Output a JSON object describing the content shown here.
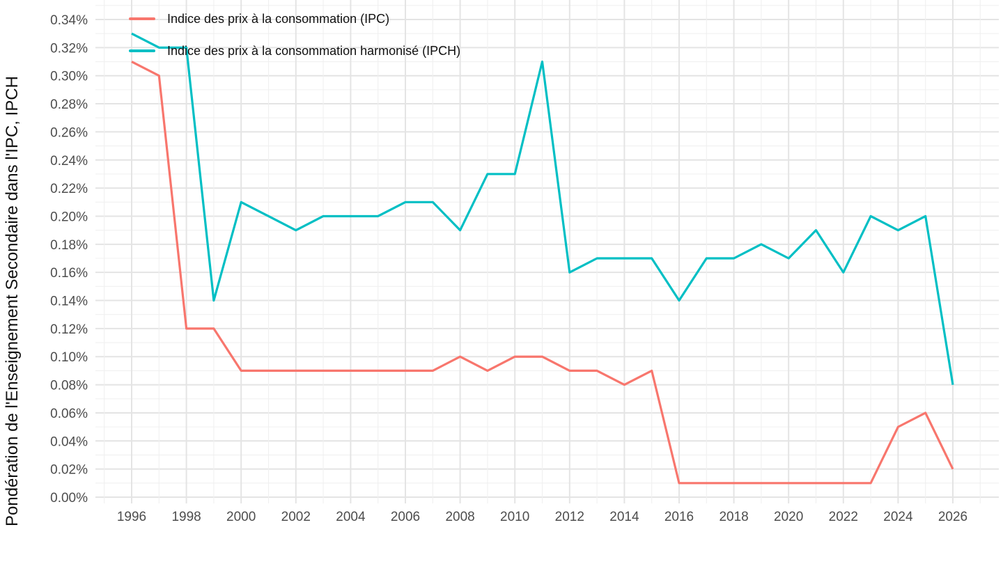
{
  "chart_data": {
    "type": "line",
    "unit": "percent-of-index-weight",
    "x": [
      1996,
      1997,
      1998,
      1999,
      2000,
      2001,
      2002,
      2003,
      2004,
      2005,
      2006,
      2007,
      2008,
      2009,
      2010,
      2011,
      2012,
      2013,
      2014,
      2015,
      2016,
      2017,
      2018,
      2019,
      2020,
      2021,
      2022,
      2023,
      2024,
      2025,
      2026
    ],
    "series": [
      {
        "name": "Indice des prix à la consommation (IPC)",
        "color": "#F8766D",
        "values": [
          0.31,
          0.3,
          0.12,
          0.12,
          0.09,
          0.09,
          0.09,
          0.09,
          0.09,
          0.09,
          0.09,
          0.09,
          0.1,
          0.09,
          0.1,
          0.1,
          0.09,
          0.09,
          0.08,
          0.09,
          0.01,
          0.01,
          0.01,
          0.01,
          0.01,
          0.01,
          0.01,
          0.01,
          0.05,
          0.06,
          0.02
        ]
      },
      {
        "name": "Indice des prix à la consommation harmonisé (IPCH)",
        "color": "#00BFC4",
        "values": [
          0.33,
          0.32,
          0.32,
          0.14,
          0.21,
          0.2,
          0.19,
          0.2,
          0.2,
          0.2,
          0.21,
          0.21,
          0.19,
          0.23,
          0.23,
          0.31,
          0.16,
          0.17,
          0.17,
          0.17,
          0.14,
          0.17,
          0.17,
          0.18,
          0.17,
          0.19,
          0.16,
          0.2,
          0.19,
          0.2,
          0.08
        ]
      }
    ],
    "y_axis": {
      "title": "Pondération de l'Enseignement Secondaire dans l'IPC, IPCH",
      "tick_values": [
        0.0,
        0.02,
        0.04,
        0.06,
        0.08,
        0.1,
        0.12,
        0.14,
        0.16,
        0.18,
        0.2,
        0.22,
        0.24,
        0.26,
        0.28,
        0.3,
        0.32,
        0.34
      ],
      "tick_labels": [
        "0.00%",
        "0.02%",
        "0.04%",
        "0.06%",
        "0.08%",
        "0.10%",
        "0.12%",
        "0.14%",
        "0.16%",
        "0.18%",
        "0.20%",
        "0.22%",
        "0.24%",
        "0.26%",
        "0.28%",
        "0.30%",
        "0.32%",
        "0.34%"
      ]
    },
    "x_axis": {
      "title": "",
      "tick_values": [
        1996,
        1998,
        2000,
        2002,
        2004,
        2006,
        2008,
        2010,
        2012,
        2014,
        2016,
        2018,
        2020,
        2022,
        2024,
        2026
      ],
      "tick_labels": [
        "1996",
        "1998",
        "2000",
        "2002",
        "2004",
        "2006",
        "2008",
        "2010",
        "2012",
        "2014",
        "2016",
        "2018",
        "2020",
        "2022",
        "2024",
        "2026"
      ]
    },
    "ylim": [
      0,
      0.35
    ],
    "grid": "major-and-minor",
    "legend_position": "top-left-inside",
    "colors": {
      "grid_major": "#E4E4E4",
      "grid_minor": "#F0F0F0",
      "tick_text": "#4D4D4D",
      "axis_title_text": "#111111",
      "background": "#FFFFFF"
    }
  }
}
